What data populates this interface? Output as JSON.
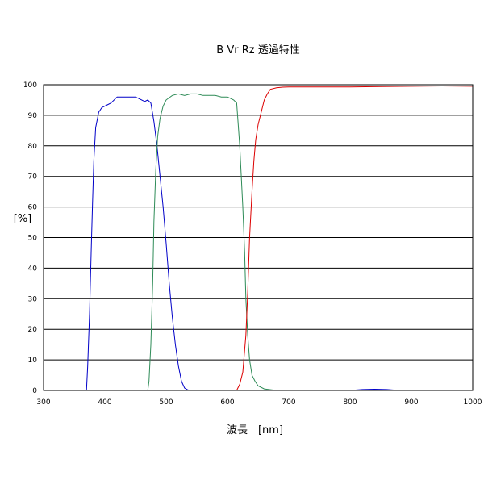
{
  "chart_data": {
    "type": "line",
    "title": "B Vr Rz   透過特性",
    "xlabel": "波長　[nm]",
    "ylabel": "[%]",
    "xlim": [
      300,
      1000
    ],
    "ylim": [
      0,
      100
    ],
    "xticks": [
      300,
      400,
      500,
      600,
      700,
      800,
      900,
      1000
    ],
    "yticks": [
      0,
      10,
      20,
      30,
      40,
      50,
      60,
      70,
      80,
      90,
      100
    ],
    "grid": "horizontal",
    "series": [
      {
        "color": "#0000c8",
        "x": [
          370,
          372,
          375,
          378,
          380,
          382,
          385,
          390,
          395,
          400,
          410,
          420,
          430,
          440,
          450,
          460,
          465,
          470,
          475,
          480,
          485,
          490,
          495,
          500,
          505,
          510,
          515,
          520,
          525,
          530,
          535,
          540,
          550,
          600,
          700,
          800,
          820,
          840,
          860,
          880,
          900,
          1000
        ],
        "y": [
          0,
          8,
          25,
          48,
          62,
          75,
          86,
          91,
          92.5,
          93,
          94,
          96,
          96,
          96,
          96,
          95,
          94.5,
          95,
          94,
          88,
          80,
          70,
          60,
          48,
          35,
          24,
          15,
          8,
          3,
          0.8,
          0.2,
          0,
          0,
          0,
          0,
          0,
          0.3,
          0.4,
          0.3,
          0,
          0,
          0
        ]
      },
      {
        "color": "#2e8b57",
        "x": [
          300,
          470,
          472,
          475,
          478,
          480,
          483,
          486,
          490,
          495,
          500,
          510,
          520,
          530,
          540,
          550,
          560,
          570,
          580,
          590,
          600,
          610,
          615,
          620,
          625,
          628,
          630,
          633,
          636,
          640,
          645,
          650,
          660,
          680,
          700,
          1000
        ],
        "y": [
          0,
          0,
          3,
          15,
          35,
          55,
          72,
          83,
          89,
          93,
          95,
          96.5,
          97,
          96.5,
          97,
          97,
          96.5,
          96.5,
          96.5,
          96,
          96,
          95,
          94,
          80,
          60,
          45,
          30,
          18,
          10,
          5,
          3,
          1.5,
          0.5,
          0,
          0,
          0
        ]
      },
      {
        "color": "#dc0000",
        "x": [
          300,
          600,
          615,
          620,
          625,
          630,
          633,
          636,
          640,
          643,
          646,
          650,
          655,
          660,
          665,
          670,
          680,
          690,
          700,
          750,
          800,
          850,
          900,
          950,
          1000
        ],
        "y": [
          0,
          0,
          0,
          2,
          6,
          18,
          32,
          50,
          65,
          75,
          82,
          87,
          91,
          95,
          97,
          98.5,
          99,
          99.2,
          99.3,
          99.3,
          99.3,
          99.4,
          99.5,
          99.6,
          99.5
        ]
      }
    ]
  }
}
